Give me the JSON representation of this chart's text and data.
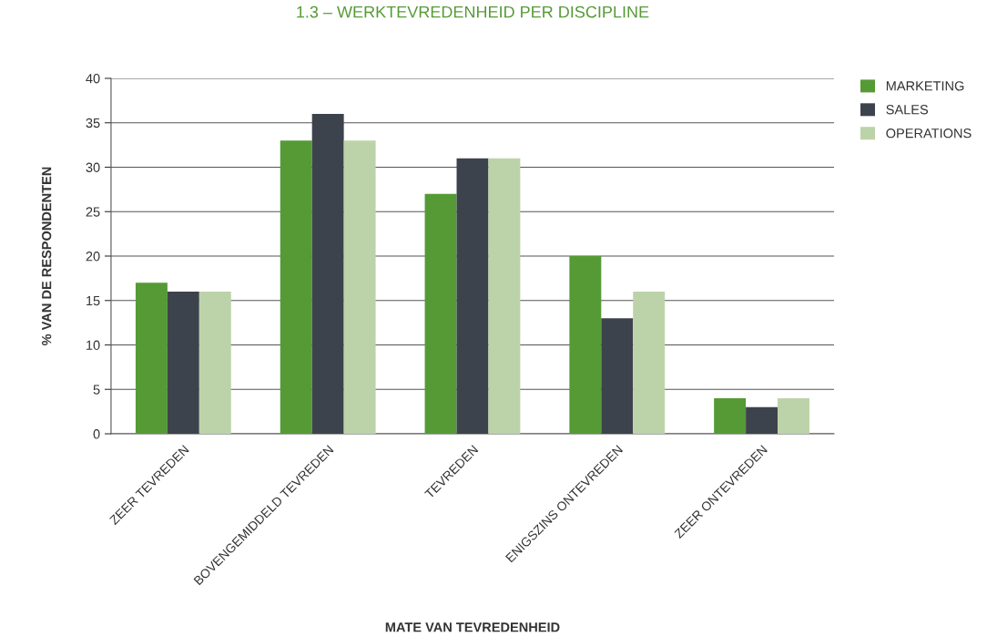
{
  "chart_data": {
    "type": "bar",
    "title": "1.3 – WERKTEVREDENHEID PER DISCIPLINE",
    "xlabel": "MATE VAN TEVREDENHEID",
    "ylabel": "% VAN DE RESPONDENTEN",
    "categories": [
      "ZEER TEVREDEN",
      "BOVENGEMIDDELD TEVREDEN",
      "TEVREDEN",
      "ENIGSZINS ONTEVREDEN",
      "ZEER ONTEVREDEN"
    ],
    "series": [
      {
        "name": "MARKETING",
        "color": "#559a35",
        "values": [
          17,
          33,
          27,
          20,
          4
        ]
      },
      {
        "name": "SALES",
        "color": "#3d434c",
        "values": [
          16,
          36,
          31,
          13,
          3
        ]
      },
      {
        "name": "OPERATIONS",
        "color": "#bcd3a9",
        "values": [
          16,
          33,
          31,
          16,
          4
        ]
      }
    ],
    "ylim": [
      0,
      40
    ],
    "yticks": [
      0,
      5,
      10,
      15,
      20,
      25,
      30,
      35,
      40
    ],
    "grid": "y",
    "legend": "top right"
  }
}
